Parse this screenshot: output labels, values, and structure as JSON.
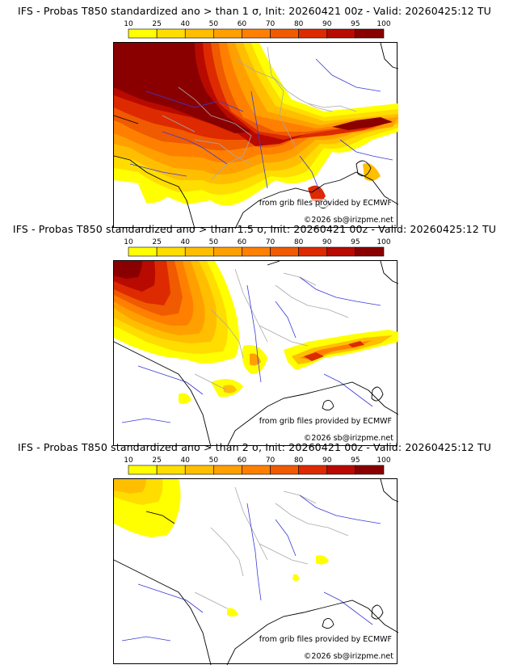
{
  "colorbar": {
    "levels": [
      "10",
      "25",
      "40",
      "50",
      "60",
      "70",
      "80",
      "90",
      "95",
      "100"
    ],
    "colors": [
      "#ffff00",
      "#ffdd00",
      "#ffbf00",
      "#ffa000",
      "#ff8000",
      "#f05a00",
      "#dd2a00",
      "#b80a00",
      "#8a0000"
    ]
  },
  "map_style": {
    "coast_color": "#000000",
    "river_color": "#3a3ad8",
    "border_color": "#a8a8a8"
  },
  "panels": [
    {
      "title": "IFS - Probas T850  standardized ano > than 1 σ, Init: 20260421 00z - Valid: 20260425:12 TU",
      "sigma": "1 σ",
      "credit_source": "from grib files provided by ECMWF",
      "credit_copyright": "©2026 sb@irizpme.net",
      "probability_coverage": "high"
    },
    {
      "title": "IFS - Probas T850  standardized ano > than 1.5 σ, Init: 20260421 00z - Valid: 20260425:12 TU",
      "sigma": "1.5 σ",
      "credit_source": "from grib files provided by ECMWF",
      "credit_copyright": "©2026 sb@irizpme.net",
      "probability_coverage": "medium"
    },
    {
      "title": "IFS - Probas T850  standardized ano > than 2 σ, Init: 20260421 00z - Valid: 20260425:12 TU",
      "sigma": "2 σ",
      "credit_source": "from grib files provided by ECMWF",
      "credit_copyright": "©2026 sb@irizpme.net",
      "probability_coverage": "low"
    }
  ]
}
